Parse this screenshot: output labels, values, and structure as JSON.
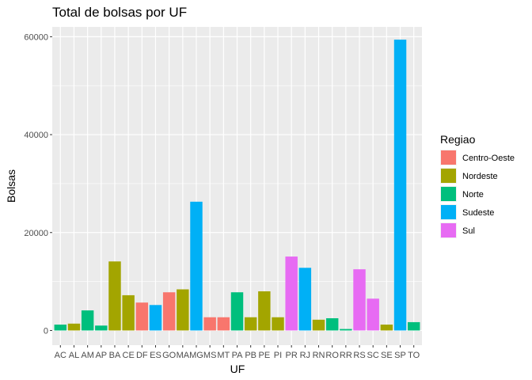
{
  "chart_data": {
    "type": "bar",
    "title": "Total de bolsas por UF",
    "xlabel": "UF",
    "ylabel": "Bolsas",
    "ylim": [
      -3000,
      62000
    ],
    "yticks": [
      0,
      20000,
      40000,
      60000
    ],
    "ytick_labels": [
      "0",
      "20000",
      "40000",
      "60000"
    ],
    "grid": true,
    "legend": {
      "title": "Regiao",
      "placement": "right",
      "entries": [
        {
          "name": "Centro-Oeste",
          "color": "#F8766D"
        },
        {
          "name": "Nordeste",
          "color": "#A3A500"
        },
        {
          "name": "Norte",
          "color": "#00BF7D"
        },
        {
          "name": "Sudeste",
          "color": "#00B0F6"
        },
        {
          "name": "Sul",
          "color": "#E76BF3"
        }
      ]
    },
    "categories": [
      "AC",
      "AL",
      "AM",
      "AP",
      "BA",
      "CE",
      "DF",
      "ES",
      "GO",
      "MA",
      "MG",
      "MS",
      "MT",
      "PA",
      "PB",
      "PE",
      "PI",
      "PR",
      "RJ",
      "RN",
      "RO",
      "RR",
      "RS",
      "SC",
      "SE",
      "SP",
      "TO"
    ],
    "values": [
      1200,
      1400,
      4100,
      1000,
      14100,
      7200,
      5700,
      5200,
      7800,
      8400,
      26300,
      2700,
      2700,
      7800,
      2700,
      8000,
      2700,
      15100,
      12800,
      2200,
      2500,
      300,
      12500,
      6500,
      1200,
      59400,
      1700
    ],
    "regions": [
      "Norte",
      "Nordeste",
      "Norte",
      "Norte",
      "Nordeste",
      "Nordeste",
      "Centro-Oeste",
      "Sudeste",
      "Centro-Oeste",
      "Nordeste",
      "Sudeste",
      "Centro-Oeste",
      "Centro-Oeste",
      "Norte",
      "Nordeste",
      "Nordeste",
      "Nordeste",
      "Sul",
      "Sudeste",
      "Nordeste",
      "Norte",
      "Norte",
      "Sul",
      "Sul",
      "Nordeste",
      "Sudeste",
      "Norte"
    ]
  }
}
